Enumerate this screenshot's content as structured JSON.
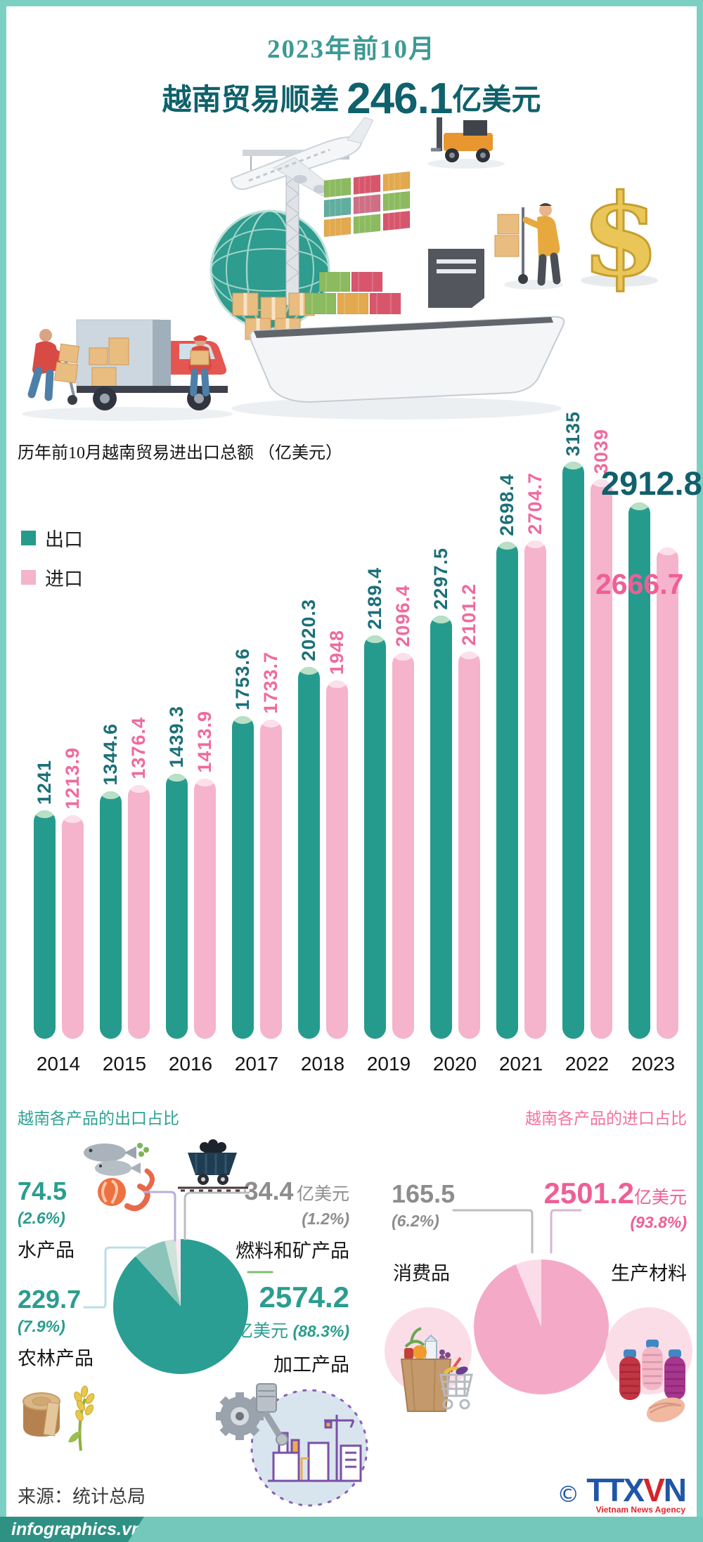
{
  "page": {
    "frame_color": "#7ccfc3",
    "title": {
      "line1": "2023年前10月",
      "line2_prefix": "越南贸易顺差 ",
      "line2_value": "246.1",
      "line2_suffix": "亿美元",
      "line1_color": "#3d9a93",
      "line2_color": "#0f616b"
    }
  },
  "illustration": {
    "description": "isometric global trade scene: cargo plane, globe with crane, shipping containers, cargo ship, delivery trucks, workers loading boxes, golden dollar sign",
    "dollar_symbol": "$"
  },
  "chart_data": [
    {
      "type": "bar",
      "title": "历年前10月越南贸易进出口总额 （亿美元）",
      "unit": "亿美元",
      "categories": [
        "2014",
        "2015",
        "2016",
        "2017",
        "2018",
        "2019",
        "2020",
        "2021",
        "2022",
        "2023"
      ],
      "series": [
        {
          "name": "出口",
          "color": "#259b8d",
          "label_color": "#1b7078",
          "values": [
            1241,
            1344.6,
            1439.3,
            1753.6,
            2020.3,
            2189.4,
            2297.5,
            2698.4,
            3135,
            2912.8
          ],
          "labels": [
            "1241",
            "1344.6",
            "1439.3",
            "1753.6",
            "2020.3",
            "2189.4",
            "2297.5",
            "2698.4",
            "3135",
            "2912.8"
          ]
        },
        {
          "name": "进口",
          "color": "#f5b3cc",
          "label_color": "#ef6a9e",
          "values": [
            1213.9,
            1376.4,
            1413.9,
            1733.7,
            1948,
            2096.4,
            2101.2,
            2704.7,
            3039,
            2666.7
          ],
          "labels": [
            "1213.9",
            "1376.4",
            "1413.9",
            "1733.7",
            "1948",
            "2096.4",
            "2101.2",
            "2704.7",
            "3039",
            "2666.7"
          ]
        }
      ],
      "highlight": {
        "category": "2023",
        "export_label": "2912.8",
        "import_label": "2666.7"
      },
      "ylim": [
        0,
        3135
      ],
      "grid": false,
      "legend_position": "top-left"
    },
    {
      "type": "pie",
      "title": "越南各产品的出口占比",
      "unit": "亿美元",
      "slices": [
        {
          "label": "加工产品",
          "value": 2574.2,
          "value_label": "2574.2",
          "unit": "亿美元",
          "pct": 88.3,
          "pct_label": "(88.3%)",
          "color": "#2a9e92"
        },
        {
          "label": "农林产品",
          "value": 229.7,
          "value_label": "229.7",
          "pct": 7.9,
          "pct_label": "(7.9%)",
          "color": "#8cc4b9"
        },
        {
          "label": "水产品",
          "value": 74.5,
          "value_label": "74.5",
          "pct": 2.6,
          "pct_label": "(2.6%)",
          "color": "#cfe2dc"
        },
        {
          "label": "燃料和矿产品",
          "value": 34.4,
          "value_label": "34.4",
          "unit": "亿美元",
          "pct": 1.2,
          "pct_label": "(1.2%)",
          "color": "#fdeaf0"
        }
      ]
    },
    {
      "type": "pie",
      "title": "越南各产品的进口占比",
      "unit": "亿美元",
      "slices": [
        {
          "label": "生产材料",
          "value": 2501.2,
          "value_label": "2501.2",
          "unit": "亿美元",
          "pct": 93.8,
          "pct_label": "(93.8%)",
          "color": "#f4aac7"
        },
        {
          "label": "消费品",
          "value": 165.5,
          "value_label": "165.5",
          "pct": 6.2,
          "pct_label": "(6.2%)",
          "color": "#fbdce8"
        }
      ]
    }
  ],
  "footer": {
    "source": "来源：统计总局",
    "copyright": "©",
    "agency_ttx": "TTX",
    "agency_v": "V",
    "agency_n": "N",
    "agency_subtitle": "Vietnam News Agency",
    "brand": "infographics.vn"
  }
}
